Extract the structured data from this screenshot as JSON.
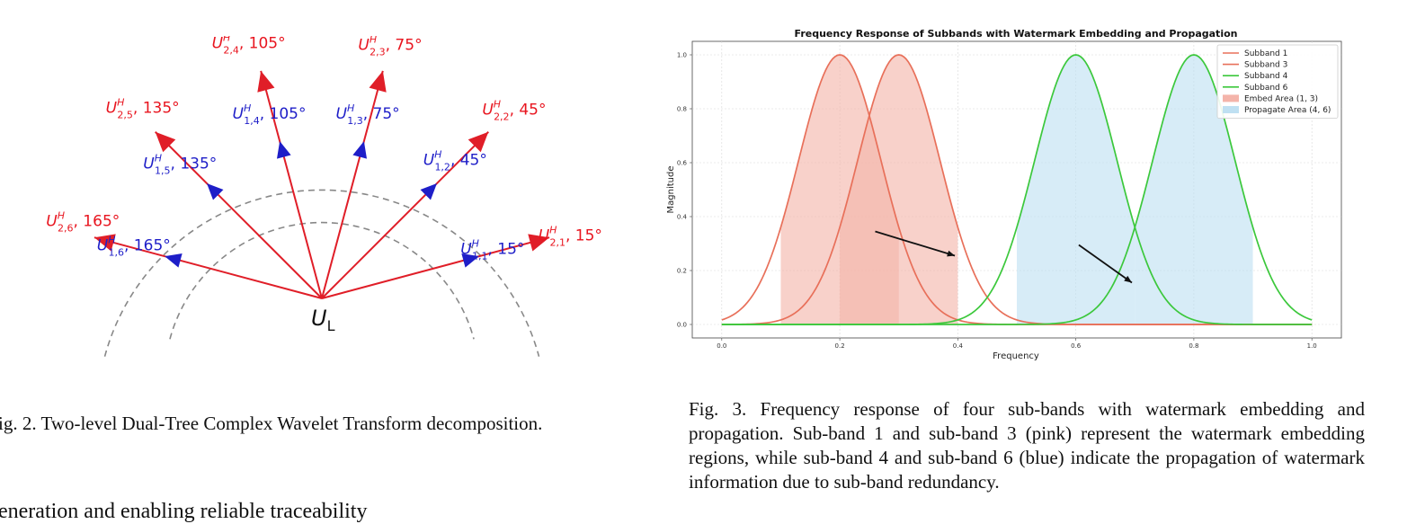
{
  "fig2": {
    "center_label": "U_L",
    "outer": [
      {
        "sub": "2,1",
        "angle": 15,
        "text": "15°"
      },
      {
        "sub": "2,2",
        "angle": 45,
        "text": "45°"
      },
      {
        "sub": "2,3",
        "angle": 75,
        "text": "75°"
      },
      {
        "sub": "2,4",
        "angle": 105,
        "text": "105°"
      },
      {
        "sub": "2,5",
        "angle": 135,
        "text": "135°"
      },
      {
        "sub": "2,6",
        "angle": 165,
        "text": "165°"
      }
    ],
    "inner": [
      {
        "sub": "1,1",
        "angle": 15,
        "text": "15°"
      },
      {
        "sub": "1,2",
        "angle": 45,
        "text": "45°"
      },
      {
        "sub": "1,3",
        "angle": 75,
        "text": "75°"
      },
      {
        "sub": "1,4",
        "angle": 105,
        "text": "105°"
      },
      {
        "sub": "1,5",
        "angle": 135,
        "text": "135°"
      },
      {
        "sub": "1,6",
        "angle": 165,
        "text": "165°"
      }
    ],
    "superscript": "H",
    "symbol": "U",
    "colors": {
      "outer": "#e8141e",
      "inner": "#1e1ec8",
      "line": "#e01e28",
      "circle": "#888888"
    },
    "caption": "ig. 2.  Two-level Dual-Tree Complex Wavelet Transform decomposition."
  },
  "chart_data": {
    "type": "line",
    "title": "Frequency Response of Subbands with Watermark Embedding and Propagation",
    "xlabel": "Frequency",
    "ylabel": "Magnitude",
    "xlim": [
      -0.05,
      1.05
    ],
    "ylim": [
      -0.05,
      1.05
    ],
    "xticks": [
      "0.0",
      "0.2",
      "0.4",
      "0.6",
      "0.8",
      "1.0"
    ],
    "yticks": [
      "0.0",
      "0.2",
      "0.4",
      "0.6",
      "0.8",
      "1.0"
    ],
    "grid": true,
    "legend_position": "top-right",
    "series": [
      {
        "name": "Subband 1",
        "center": 0.2,
        "sigma": 0.07,
        "color": "#e8705a"
      },
      {
        "name": "Subband 3",
        "center": 0.3,
        "sigma": 0.07,
        "color": "#e8705a"
      },
      {
        "name": "Subband 4",
        "center": 0.6,
        "sigma": 0.07,
        "color": "#3cc83c"
      },
      {
        "name": "Subband 6",
        "center": 0.8,
        "sigma": 0.07,
        "color": "#3cc83c"
      }
    ],
    "areas": [
      {
        "name": "Embed Area (1, 3)",
        "curves": [
          0,
          1
        ],
        "x_range": [
          0.1,
          0.4
        ],
        "color": "#f4b4aa"
      },
      {
        "name": "Propagate Area (4, 6)",
        "curves": [
          2,
          3
        ],
        "x_range": [
          0.5,
          0.9
        ],
        "color": "#bfe0f2"
      }
    ],
    "annotations": [
      {
        "type": "arrow",
        "from": [
          0.26,
          0.345
        ],
        "to": [
          0.395,
          0.255
        ]
      },
      {
        "type": "arrow",
        "from": [
          0.605,
          0.295
        ],
        "to": [
          0.695,
          0.155
        ]
      }
    ]
  },
  "fig3": {
    "caption": "Fig. 3.  Frequency response of four sub-bands with watermark embedding and propagation. Sub-band 1 and sub-band 3 (pink) represent the watermark embedding regions, while sub-band 4 and sub-band 6 (blue) indicate the propagation of watermark information due to sub-band redundancy."
  },
  "body_text": "eneration and enabling reliable traceability"
}
